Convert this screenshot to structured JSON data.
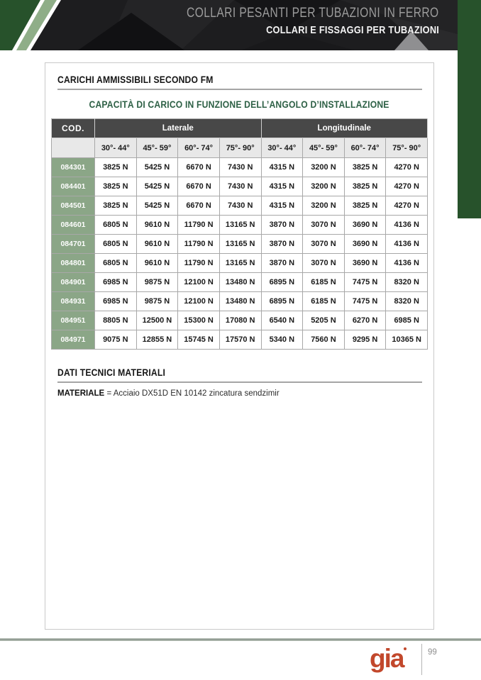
{
  "header": {
    "title": "COLLARI PESANTI PER TUBAZIONI IN FERRO",
    "subtitle": "COLLARI E FISSAGGI PER TUBAZIONI"
  },
  "section1": {
    "heading": "CARICHI AMMISSIBILI SECONDO FM",
    "table_title": "CAPACITÀ DI CARICO IN FUNZIONE DELL’ANGOLO D’INSTALLAZIONE"
  },
  "table": {
    "cod_header": "COD.",
    "group_headers": [
      "Laterale",
      "Longitudinale"
    ],
    "angle_headers": [
      "30°- 44°",
      "45°- 59°",
      "60°- 74°",
      "75°- 90°",
      "30°- 44°",
      "45°- 59°",
      "60°- 74°",
      "75°- 90°"
    ],
    "rows": [
      {
        "cod": "084301",
        "values": [
          "3825 N",
          "5425 N",
          "6670 N",
          "7430 N",
          "4315 N",
          "3200 N",
          "3825 N",
          "4270 N"
        ]
      },
      {
        "cod": "084401",
        "values": [
          "3825 N",
          "5425 N",
          "6670 N",
          "7430 N",
          "4315 N",
          "3200 N",
          "3825 N",
          "4270 N"
        ]
      },
      {
        "cod": "084501",
        "values": [
          "3825 N",
          "5425 N",
          "6670 N",
          "7430 N",
          "4315 N",
          "3200 N",
          "3825 N",
          "4270 N"
        ]
      },
      {
        "cod": "084601",
        "values": [
          "6805 N",
          "9610 N",
          "11790 N",
          "13165 N",
          "3870 N",
          "3070 N",
          "3690 N",
          "4136 N"
        ]
      },
      {
        "cod": "084701",
        "values": [
          "6805 N",
          "9610 N",
          "11790 N",
          "13165 N",
          "3870 N",
          "3070 N",
          "3690 N",
          "4136 N"
        ]
      },
      {
        "cod": "084801",
        "values": [
          "6805 N",
          "9610 N",
          "11790 N",
          "13165 N",
          "3870 N",
          "3070 N",
          "3690 N",
          "4136 N"
        ]
      },
      {
        "cod": "084901",
        "values": [
          "6985 N",
          "9875 N",
          "12100 N",
          "13480 N",
          "6895 N",
          "6185 N",
          "7475 N",
          "8320 N"
        ]
      },
      {
        "cod": "084931",
        "values": [
          "6985 N",
          "9875 N",
          "12100 N",
          "13480 N",
          "6895 N",
          "6185 N",
          "7475 N",
          "8320 N"
        ]
      },
      {
        "cod": "084951",
        "values": [
          "8805 N",
          "12500 N",
          "15300 N",
          "17080 N",
          "6540 N",
          "5205 N",
          "6270 N",
          "6985 N"
        ]
      },
      {
        "cod": "084971",
        "values": [
          "9075 N",
          "12855 N",
          "15745 N",
          "17570 N",
          "5340 N",
          "7560 N",
          "9295 N",
          "10365 N"
        ]
      }
    ]
  },
  "section2": {
    "heading": "DATI TECNICI MATERIALI",
    "material_label": "MATERIALE",
    "material_value": "= Acciaio DX51D  EN 10142 zincatura sendzimir"
  },
  "footer": {
    "logo_text": "gia",
    "page_number": "99"
  },
  "colors": {
    "dark_green": "#27522b",
    "sage_green": "#8fae88",
    "cod_cell_green": "#8ba687",
    "table_header_gray": "#484848",
    "angle_row_gray": "#e8e8e8",
    "title_green": "#2d6045",
    "brand_red": "#c2482c",
    "header_background": "#1d1d1f"
  }
}
